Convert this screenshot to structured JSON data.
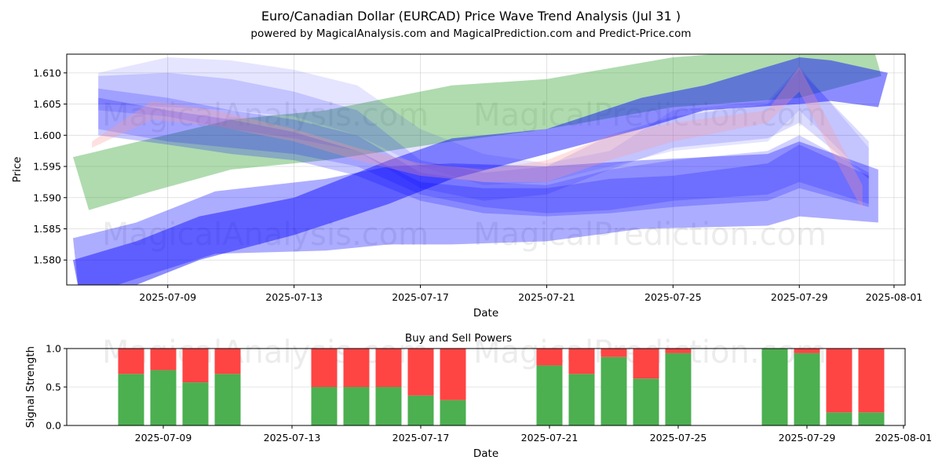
{
  "title_line1": "Euro/Canadian Dollar (EURCAD) Price Wave Trend Analysis (Jul 31 )",
  "title_line2": "powered by MagicalAnalysis.com and MagicalPrediction.com and Predict-Price.com",
  "watermarks": [
    "MagicalAnalysis.com",
    "MagicalPrediction.com"
  ],
  "colors": {
    "green": "#2ca02c",
    "blue": "#0000ff",
    "pink": "#ff9999",
    "buy": "#4caf50",
    "sell": "#ff4444"
  },
  "chart_data": [
    {
      "type": "area",
      "title": "",
      "xlabel": "Date",
      "ylabel": "Price",
      "ylim": [
        1.576,
        1.613
      ],
      "xlim": [
        "2025-07-06",
        "2025-08-01"
      ],
      "x_ticks": [
        "2025-07-09",
        "2025-07-13",
        "2025-07-17",
        "2025-07-21",
        "2025-07-25",
        "2025-07-29",
        "2025-08-01"
      ],
      "y_ticks": [
        "1.580",
        "1.585",
        "1.590",
        "1.595",
        "1.600",
        "1.605",
        "1.610"
      ],
      "grid": true,
      "series": [
        {
          "name": "green-band",
          "color": "#2ca02c",
          "opacity": 0.38,
          "x": [
            6.0,
            8.5,
            11.0,
            14.0,
            16.0,
            18.0,
            21.0,
            25.0,
            29.0,
            31.4,
            31.6,
            29.0,
            25.0,
            21.0,
            18.0,
            16.0,
            14.0,
            11.0,
            8.5,
            6.5
          ],
          "y": [
            1.5965,
            1.5995,
            1.6025,
            1.604,
            1.606,
            1.608,
            1.609,
            1.6125,
            1.614,
            1.613,
            1.6095,
            1.606,
            1.6045,
            1.601,
            1.599,
            1.5975,
            1.596,
            1.5945,
            1.591,
            1.588
          ]
        },
        {
          "name": "lower-wave",
          "color": "#0000ff",
          "opacity": 0.32,
          "x": [
            6.0,
            8.0,
            10.5,
            14.0,
            16.0,
            18.0,
            21.0,
            24.0,
            28.0,
            29.0,
            31.5,
            31.5,
            29.0,
            28.0,
            24.0,
            21.0,
            18.0,
            16.0,
            14.0,
            10.5,
            8.0,
            6.2
          ],
          "y": [
            1.5835,
            1.586,
            1.591,
            1.593,
            1.595,
            1.5955,
            1.595,
            1.596,
            1.597,
            1.599,
            1.5945,
            1.586,
            1.587,
            1.5855,
            1.585,
            1.583,
            1.5825,
            1.5825,
            1.5815,
            1.581,
            1.577,
            1.574
          ]
        },
        {
          "name": "rising-wave",
          "color": "#0000ff",
          "opacity": 0.45,
          "x": [
            6.0,
            8.0,
            10.0,
            13.0,
            16.0,
            18.0,
            21.0,
            24.0,
            26.0,
            29.0,
            30.0,
            31.8,
            31.5,
            30.0,
            29.0,
            26.0,
            24.0,
            21.0,
            18.0,
            16.0,
            13.0,
            10.0,
            8.0,
            6.3
          ],
          "y": [
            1.58,
            1.583,
            1.587,
            1.59,
            1.596,
            1.5995,
            1.601,
            1.606,
            1.608,
            1.6125,
            1.612,
            1.61,
            1.6045,
            1.6055,
            1.605,
            1.604,
            1.601,
            1.597,
            1.593,
            1.589,
            1.584,
            1.58,
            1.576,
            1.572
          ]
        },
        {
          "name": "top-wave",
          "color": "#0000ff",
          "opacity": 0.1,
          "x": [
            6.8,
            9.0,
            11.0,
            13.0,
            15.0,
            17.0,
            19.0,
            21.0,
            23.0,
            25.0,
            28.0,
            29.0,
            31.2,
            31.2,
            29.0,
            28.0,
            25.0,
            23.0,
            21.0,
            19.0,
            17.0,
            15.0,
            13.0,
            11.0,
            9.0,
            6.8
          ],
          "y": [
            1.61,
            1.6125,
            1.612,
            1.6105,
            1.608,
            1.601,
            1.597,
            1.5955,
            1.5975,
            1.604,
            1.6055,
            1.611,
            1.598,
            1.593,
            1.604,
            1.599,
            1.5975,
            1.595,
            1.5925,
            1.592,
            1.595,
            1.6,
            1.603,
            1.604,
            1.6045,
            1.605
          ]
        },
        {
          "name": "mid-wave-1",
          "color": "#0000ff",
          "opacity": 0.14,
          "x": [
            6.8,
            9.0,
            11.0,
            13.0,
            15.0,
            17.0,
            19.0,
            21.0,
            23.0,
            25.0,
            28.0,
            29.0,
            31.2,
            31.2,
            29.0,
            28.0,
            25.0,
            23.0,
            21.0,
            19.0,
            17.0,
            15.0,
            13.0,
            11.0,
            9.0,
            6.8
          ],
          "y": [
            1.6095,
            1.61,
            1.609,
            1.607,
            1.604,
            1.596,
            1.594,
            1.595,
            1.6,
            1.603,
            1.605,
            1.6105,
            1.599,
            1.593,
            1.602,
            1.5995,
            1.598,
            1.5945,
            1.5905,
            1.5895,
            1.5915,
            1.5975,
            1.5995,
            1.601,
            1.603,
            1.604
          ]
        },
        {
          "name": "mid-wave-2",
          "color": "#0000ff",
          "opacity": 0.18,
          "x": [
            6.8,
            9.0,
            11.0,
            13.0,
            15.0,
            17.0,
            19.0,
            21.0,
            23.0,
            25.0,
            28.0,
            29.0,
            31.2,
            31.2,
            29.0,
            28.0,
            25.0,
            23.0,
            21.0,
            19.0,
            17.0,
            15.0,
            13.0,
            11.0,
            9.0,
            6.8
          ],
          "y": [
            1.6075,
            1.606,
            1.604,
            1.6025,
            1.6,
            1.594,
            1.5925,
            1.592,
            1.5945,
            1.596,
            1.5975,
            1.6,
            1.594,
            1.589,
            1.5925,
            1.5905,
            1.5895,
            1.588,
            1.5875,
            1.5885,
            1.5905,
            1.595,
            1.597,
            1.598,
            1.599,
            1.601
          ]
        },
        {
          "name": "mid-wave-3",
          "color": "#0000ff",
          "opacity": 0.22,
          "x": [
            6.8,
            9.0,
            11.0,
            13.0,
            15.0,
            17.0,
            19.0,
            21.0,
            23.0,
            25.0,
            28.0,
            29.0,
            31.2,
            31.2,
            29.0,
            28.0,
            25.0,
            23.0,
            21.0,
            19.0,
            17.0,
            15.0,
            13.0,
            11.0,
            9.0,
            6.8
          ],
          "y": [
            1.606,
            1.604,
            1.6025,
            1.6005,
            1.5975,
            1.5925,
            1.5915,
            1.5915,
            1.593,
            1.5935,
            1.5955,
            1.5985,
            1.5935,
            1.5885,
            1.5915,
            1.5895,
            1.5885,
            1.5875,
            1.587,
            1.5875,
            1.5895,
            1.5935,
            1.596,
            1.597,
            1.5985,
            1.6
          ]
        },
        {
          "name": "pink-wave",
          "color": "#ff9999",
          "opacity": 0.3,
          "x": [
            6.6,
            8.5,
            10.5,
            13.0,
            15.0,
            17.0,
            19.0,
            21.0,
            23.0,
            25.0,
            28.0,
            29.0,
            31.0,
            31.0,
            29.0,
            28.0,
            25.0,
            23.0,
            21.0,
            19.0,
            17.0,
            15.0,
            13.0,
            10.5,
            8.5,
            6.6
          ],
          "y": [
            1.599,
            1.6055,
            1.604,
            1.601,
            1.598,
            1.5955,
            1.5945,
            1.596,
            1.6,
            1.602,
            1.604,
            1.611,
            1.592,
            1.588,
            1.607,
            1.602,
            1.599,
            1.596,
            1.5925,
            1.5925,
            1.5935,
            1.596,
            1.599,
            1.6015,
            1.6025,
            1.598
          ]
        }
      ]
    },
    {
      "type": "bar",
      "title": "Buy and Sell Powers",
      "xlabel": "Date",
      "ylabel": "Signal Strength",
      "ylim": [
        0.0,
        1.0
      ],
      "y_ticks": [
        "0.0",
        "0.5",
        "1.0"
      ],
      "x_ticks": [
        "2025-07-09",
        "2025-07-13",
        "2025-07-17",
        "2025-07-21",
        "2025-07-25",
        "2025-07-29",
        "2025-08-01"
      ],
      "grid": true,
      "categories": [
        "2025-07-08",
        "2025-07-09",
        "2025-07-10",
        "2025-07-11",
        "2025-07-14",
        "2025-07-15",
        "2025-07-16",
        "2025-07-17",
        "2025-07-18",
        "2025-07-21",
        "2025-07-22",
        "2025-07-23",
        "2025-07-24",
        "2025-07-25",
        "2025-07-28",
        "2025-07-29",
        "2025-07-30",
        "2025-07-31"
      ],
      "series": [
        {
          "name": "Buy",
          "color": "#4caf50",
          "values": [
            0.67,
            0.72,
            0.56,
            0.67,
            0.5,
            0.5,
            0.5,
            0.39,
            0.33,
            0.78,
            0.67,
            0.89,
            0.61,
            0.94,
            1.0,
            0.94,
            0.17,
            0.17
          ]
        },
        {
          "name": "Sell",
          "color": "#ff4444",
          "values": [
            0.33,
            0.28,
            0.44,
            0.33,
            0.5,
            0.5,
            0.5,
            0.61,
            0.67,
            0.22,
            0.33,
            0.11,
            0.39,
            0.06,
            0.0,
            0.06,
            0.83,
            0.83
          ]
        }
      ]
    }
  ]
}
